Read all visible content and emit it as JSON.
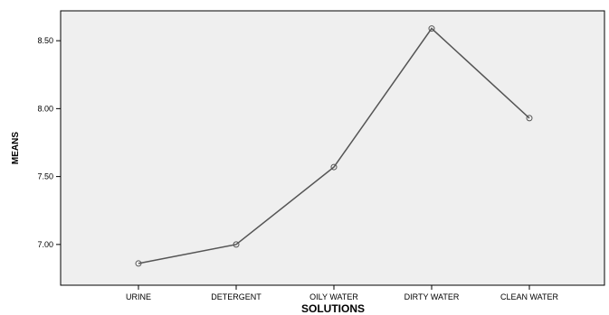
{
  "chart_data": {
    "type": "line",
    "title": "",
    "xlabel": "SOLUTIONS",
    "ylabel": "MEANS",
    "categories": [
      "URINE",
      "DETERGENT",
      "OILY WATER",
      "DIRTY WATER",
      "CLEAN WATER"
    ],
    "series": [
      {
        "values": [
          6.86,
          7.0,
          7.57,
          8.59,
          7.93
        ]
      }
    ],
    "ylim": [
      6.7,
      8.72
    ],
    "yticks": [
      7.0,
      7.5,
      8.0,
      8.5
    ],
    "ytick_labels": [
      "7.00",
      "7.50",
      "8.00",
      "8.50"
    ],
    "grid": false,
    "legend": "none",
    "marker": "open-circle",
    "colors": {
      "plot_background": "#efefef",
      "line": "#555555",
      "axis": "#000000"
    }
  }
}
